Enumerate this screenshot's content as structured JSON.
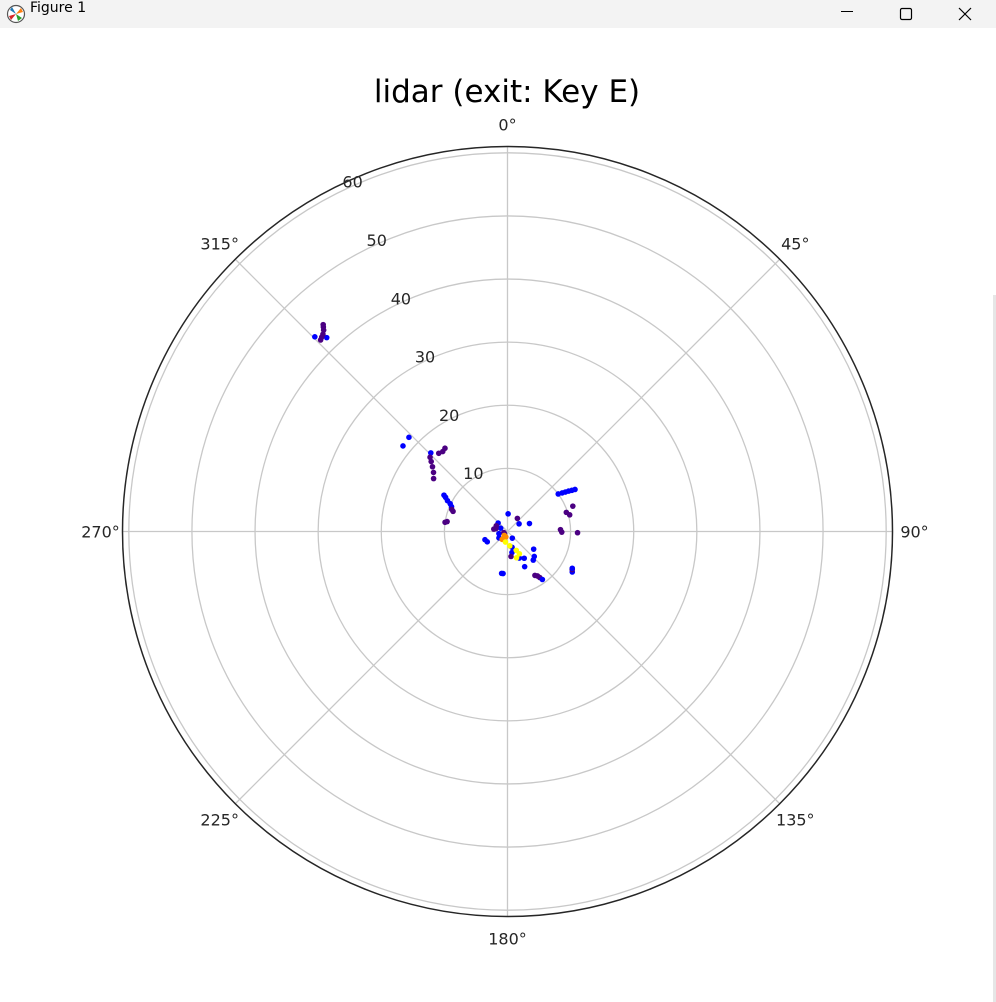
{
  "window": {
    "title": "Figure 1",
    "icon": "matplotlib-icon",
    "controls": [
      "minimize-icon",
      "maximize-icon",
      "close-icon"
    ]
  },
  "chart_data": {
    "type": "scatter",
    "projection": "polar",
    "title": "lidar (exit: Key E)",
    "theta_zero_location": "N",
    "theta_direction": "clockwise",
    "theta_ticks": [
      0,
      45,
      90,
      135,
      180,
      225,
      270,
      315
    ],
    "theta_tick_labels": [
      "0°",
      "315°",
      "270°",
      "225°",
      "180°",
      "135°",
      "90°",
      "45°"
    ],
    "r_ticks": [
      10,
      20,
      30,
      40,
      50,
      60
    ],
    "r_tick_labels": [
      "10",
      "20",
      "30",
      "40",
      "50",
      "60"
    ],
    "rlim": [
      0,
      61
    ],
    "grid": true,
    "colors": {
      "blue": "#0000ff",
      "purple": "#4b0082",
      "orange": "#ff8c00",
      "yellow": "#ffff00",
      "grid": "#c8c8c8",
      "frame": "#262626"
    },
    "points": [
      {
        "r": 43.4,
        "theta": 44.7,
        "color": "blue"
      },
      {
        "r": 42.0,
        "theta": 43.0,
        "color": "blue"
      },
      {
        "r": 42.4,
        "theta": 44.3,
        "color": "purple"
      },
      {
        "r": 42.6,
        "theta": 43.7,
        "color": "purple"
      },
      {
        "r": 42.8,
        "theta": 43.1,
        "color": "purple"
      },
      {
        "r": 43.2,
        "theta": 42.4,
        "color": "purple"
      },
      {
        "r": 43.9,
        "theta": 41.7,
        "color": "purple"
      },
      {
        "r": 43.6,
        "theta": 42.0,
        "color": "purple"
      },
      {
        "r": 21.4,
        "theta": 50.7,
        "color": "blue"
      },
      {
        "r": 21.6,
        "theta": 46.3,
        "color": "blue"
      },
      {
        "r": 17.4,
        "theta": 44.3,
        "color": "blue"
      },
      {
        "r": 17.0,
        "theta": 46.2,
        "color": "purple"
      },
      {
        "r": 16.4,
        "theta": 47.5,
        "color": "purple"
      },
      {
        "r": 15.7,
        "theta": 49.2,
        "color": "purple"
      },
      {
        "r": 15.0,
        "theta": 51.4,
        "color": "purple"
      },
      {
        "r": 14.4,
        "theta": 54.4,
        "color": "purple"
      },
      {
        "r": 16.5,
        "theta": 41.3,
        "color": "purple"
      },
      {
        "r": 16.3,
        "theta": 39.0,
        "color": "purple"
      },
      {
        "r": 16.5,
        "theta": 36.9,
        "color": "purple"
      },
      {
        "r": 11.6,
        "theta": 60.2,
        "color": "blue"
      },
      {
        "r": 11.2,
        "theta": 61.1,
        "color": "blue"
      },
      {
        "r": 10.7,
        "theta": 62.8,
        "color": "blue"
      },
      {
        "r": 10.1,
        "theta": 64.1,
        "color": "blue"
      },
      {
        "r": 9.7,
        "theta": 66.1,
        "color": "blue"
      },
      {
        "r": 9.5,
        "theta": 68.4,
        "color": "purple"
      },
      {
        "r": 9.2,
        "theta": 69.7,
        "color": "purple"
      },
      {
        "r": 10.0,
        "theta": 81.6,
        "color": "purple"
      },
      {
        "r": 9.7,
        "theta": 80.7,
        "color": "purple"
      },
      {
        "r": 11.1,
        "theta": 269.0,
        "color": "purple"
      },
      {
        "r": 8.4,
        "theta": 272.0,
        "color": "purple"
      },
      {
        "r": 8.6,
        "theta": 269.3,
        "color": "purple"
      },
      {
        "r": 9.8,
        "theta": 288.0,
        "color": "purple"
      },
      {
        "r": 10.2,
        "theta": 285.0,
        "color": "purple"
      },
      {
        "r": 11.1,
        "theta": 291.2,
        "color": "purple"
      },
      {
        "r": 10.0,
        "theta": 306.5,
        "color": "blue"
      },
      {
        "r": 10.6,
        "theta": 305.2,
        "color": "blue"
      },
      {
        "r": 11.1,
        "theta": 304.3,
        "color": "blue"
      },
      {
        "r": 11.6,
        "theta": 303.5,
        "color": "blue"
      },
      {
        "r": 12.1,
        "theta": 302.6,
        "color": "blue"
      },
      {
        "r": 12.6,
        "theta": 301.9,
        "color": "blue"
      },
      {
        "r": 3.7,
        "theta": 290.0,
        "color": "blue"
      },
      {
        "r": 2.2,
        "theta": 303.5,
        "color": "blue"
      },
      {
        "r": 2.6,
        "theta": 323.0,
        "color": "purple"
      },
      {
        "r": 2.8,
        "theta": 358.0,
        "color": "blue"
      },
      {
        "r": 2.0,
        "theta": 48.0,
        "color": "blue"
      },
      {
        "r": 1.2,
        "theta": 64.0,
        "color": "blue"
      },
      {
        "r": 2.0,
        "theta": 63.0,
        "color": "purple"
      },
      {
        "r": 1.9,
        "theta": 76.0,
        "color": "purple"
      },
      {
        "r": 2.2,
        "theta": 80.0,
        "color": "purple"
      },
      {
        "r": 1.4,
        "theta": 104.0,
        "color": "blue"
      },
      {
        "r": 1.7,
        "theta": 127.0,
        "color": "blue"
      },
      {
        "r": 3.6,
        "theta": 117.0,
        "color": "blue"
      },
      {
        "r": 3.8,
        "theta": 110.0,
        "color": "blue"
      },
      {
        "r": 0.6,
        "theta": 126.0,
        "color": "purple"
      },
      {
        "r": 0.6,
        "theta": 107.0,
        "color": "purple"
      },
      {
        "r": 1.3,
        "theta": 216.0,
        "color": "blue"
      },
      {
        "r": 2.6,
        "theta": 196.0,
        "color": "blue"
      },
      {
        "r": 3.4,
        "theta": 192.0,
        "color": "blue"
      },
      {
        "r": 4.0,
        "theta": 188.0,
        "color": "purple"
      },
      {
        "r": 4.6,
        "theta": 204.0,
        "color": "blue"
      },
      {
        "r": 5.0,
        "theta": 212.0,
        "color": "blue"
      },
      {
        "r": 6.2,
        "theta": 206.0,
        "color": "blue"
      },
      {
        "r": 6.1,
        "theta": 222.0,
        "color": "blue"
      },
      {
        "r": 5.8,
        "theta": 227.0,
        "color": "blue"
      },
      {
        "r": 5.0,
        "theta": 236.0,
        "color": "blue"
      },
      {
        "r": 6.7,
        "theta": 172.0,
        "color": "blue"
      },
      {
        "r": 6.7,
        "theta": 174.0,
        "color": "blue"
      },
      {
        "r": 8.2,
        "theta": 212.0,
        "color": "purple"
      },
      {
        "r": 8.5,
        "theta": 214.0,
        "color": "purple"
      },
      {
        "r": 8.9,
        "theta": 215.0,
        "color": "purple"
      },
      {
        "r": 9.4,
        "theta": 216.0,
        "color": "blue"
      },
      {
        "r": 12.1,
        "theta": 238.0,
        "color": "blue"
      },
      {
        "r": 11.9,
        "theta": 239.5,
        "color": "purple"
      },
      {
        "r": 11.8,
        "theta": 240.4,
        "color": "blue"
      },
      {
        "r": 0.9,
        "theta": 163.0,
        "color": "orange"
      },
      {
        "r": 1.2,
        "theta": 153.0,
        "color": "orange"
      },
      {
        "r": 1.5,
        "theta": 146.0,
        "color": "orange"
      },
      {
        "r": 0.8,
        "theta": 140.0,
        "color": "orange"
      },
      {
        "r": 1.7,
        "theta": 169.0,
        "color": "yellow"
      },
      {
        "r": 2.3,
        "theta": 189.0,
        "color": "yellow"
      },
      {
        "r": 3.3,
        "theta": 205.0,
        "color": "yellow"
      },
      {
        "r": 4.0,
        "theta": 208.0,
        "color": "yellow"
      },
      {
        "r": 4.4,
        "theta": 199.0,
        "color": "yellow"
      }
    ]
  }
}
